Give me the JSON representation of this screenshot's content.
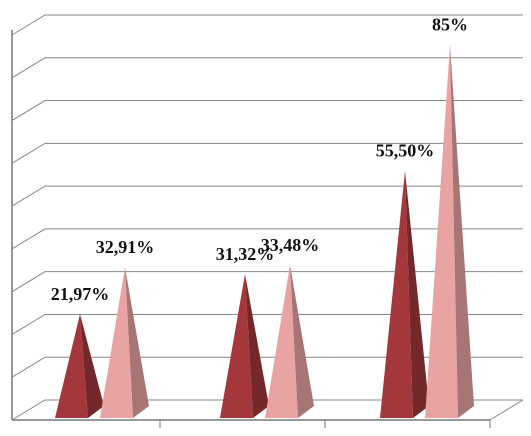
{
  "chart_data": {
    "type": "pyramid",
    "categories": [
      null,
      null,
      null
    ],
    "series": [
      {
        "color": "#a3373b",
        "values": [
          21.97,
          31.32,
          55.5
        ],
        "value_labels": [
          "21,97%",
          "31,32%",
          "55,50%"
        ]
      },
      {
        "color": "#e9a3a3",
        "values": [
          32.91,
          33.48,
          85
        ],
        "value_labels": [
          "32,91%",
          "33,48%",
          "85%"
        ]
      }
    ],
    "ylim": [
      0,
      90
    ],
    "yticks": [
      0,
      10,
      20,
      30,
      40,
      50,
      60,
      70,
      80,
      90
    ],
    "grid": true
  }
}
